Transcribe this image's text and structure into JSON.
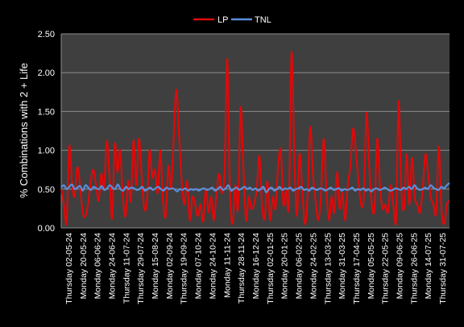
{
  "chart_data": {
    "type": "line",
    "ylabel": "% Combinations with 2 + Life",
    "xlabel": "",
    "ylim": [
      0,
      2.5
    ],
    "y_ticks": [
      "0.00",
      "0.50",
      "1.00",
      "1.50",
      "2.00",
      "2.50"
    ],
    "grid": true,
    "legend_position": "top",
    "x_tick_labels": [
      "Thursday  02-05-24",
      "Monday 20-05-24",
      "Monday 06-06-24",
      "Monday 24-06-24",
      "Thursday 11-07-24",
      "Thursday 29-07-24",
      "Monday 15-08-24",
      "Monday 02-09-24",
      "Thursday 19-09-24",
      "Monday 07-10-24",
      "Monday 24-10-24",
      "Monday 11-11-24",
      "Thursday 28-11-24",
      "Monday 16-12-24",
      "Thursday 02-01-25",
      "Monday 20-01-25",
      "Monday 06-02-25",
      "Monday 24-02-25",
      "Thursday 13-03-25",
      "Monday 31-03-25",
      "Thursday 17-04-25",
      "Monday 05-05-25",
      "Thursday 22-05-25",
      "Monday 09-06-25",
      "Thursday 26-06-25",
      "Monday 14-07-25",
      "Thursday 31-07-25"
    ],
    "series": [
      {
        "name": "LP",
        "color": "#dd0a0a",
        "values": [
          0.5,
          0.3,
          0.05,
          1.05,
          0.6,
          0.4,
          0.78,
          0.55,
          0.2,
          0.15,
          0.3,
          0.6,
          0.75,
          0.55,
          0.35,
          0.7,
          0.5,
          1.12,
          0.7,
          0.12,
          1.08,
          0.72,
          1.0,
          0.4,
          0.15,
          0.6,
          0.35,
          1.13,
          0.55,
          1.15,
          0.7,
          0.25,
          0.35,
          1.0,
          0.65,
          0.75,
          0.45,
          1.0,
          0.35,
          0.15,
          0.8,
          0.5,
          1.15,
          1.78,
          1.2,
          0.6,
          0.3,
          0.6,
          0.1,
          0.4,
          0.3,
          0.15,
          0.3,
          0.08,
          0.5,
          0.2,
          0.4,
          0.1,
          0.45,
          0.7,
          0.45,
          0.72,
          2.18,
          0.5,
          0.05,
          0.55,
          0.25,
          1.55,
          0.8,
          0.1,
          0.4,
          0.25,
          0.3,
          0.5,
          0.93,
          0.3,
          0.12,
          0.6,
          0.1,
          0.4,
          0.25,
          0.8,
          1.0,
          0.3,
          0.5,
          0.3,
          2.26,
          1.0,
          0.15,
          0.95,
          0.5,
          0.05,
          0.4,
          1.3,
          0.7,
          0.35,
          0.1,
          0.4,
          1.15,
          0.5,
          0.1,
          0.4,
          0.2,
          0.72,
          0.25,
          0.45,
          0.1,
          0.55,
          0.8,
          1.28,
          1.0,
          0.6,
          0.3,
          0.4,
          1.48,
          0.8,
          0.3,
          0.25,
          1.15,
          0.55,
          0.25,
          0.3,
          0.2,
          0.55,
          0.3,
          0.05,
          1.63,
          0.5,
          0.25,
          0.95,
          0.3,
          0.9,
          0.4,
          0.3,
          0.2,
          0.5,
          0.95,
          0.7,
          0.4,
          0.3,
          0.2,
          1.05,
          0.25,
          0.05,
          0.3,
          0.35
        ]
      },
      {
        "name": "TNL",
        "color": "#5b8edb",
        "values": [
          0.52,
          0.55,
          0.5,
          0.53,
          0.56,
          0.5,
          0.52,
          0.54,
          0.48,
          0.55,
          0.52,
          0.49,
          0.53,
          0.51,
          0.5,
          0.54,
          0.49,
          0.51,
          0.55,
          0.52,
          0.5,
          0.56,
          0.5,
          0.48,
          0.53,
          0.5,
          0.52,
          0.51,
          0.49,
          0.5,
          0.53,
          0.48,
          0.5,
          0.52,
          0.49,
          0.51,
          0.53,
          0.5,
          0.48,
          0.52,
          0.5,
          0.51,
          0.5,
          0.47,
          0.5,
          0.49,
          0.51,
          0.48,
          0.5,
          0.49,
          0.5,
          0.48,
          0.5,
          0.51,
          0.49,
          0.5,
          0.52,
          0.48,
          0.5,
          0.53,
          0.49,
          0.51,
          0.55,
          0.48,
          0.5,
          0.52,
          0.49,
          0.51,
          0.53,
          0.5,
          0.52,
          0.49,
          0.51,
          0.48,
          0.5,
          0.53,
          0.46,
          0.5,
          0.52,
          0.48,
          0.5,
          0.53,
          0.49,
          0.51,
          0.5,
          0.52,
          0.48,
          0.5,
          0.51,
          0.53,
          0.49,
          0.5,
          0.48,
          0.52,
          0.5,
          0.49,
          0.51,
          0.5,
          0.48,
          0.5,
          0.52,
          0.49,
          0.5,
          0.51,
          0.48,
          0.5,
          0.49,
          0.5,
          0.52,
          0.48,
          0.5,
          0.49,
          0.51,
          0.48,
          0.5,
          0.47,
          0.5,
          0.51,
          0.49,
          0.5,
          0.52,
          0.5,
          0.48,
          0.49,
          0.51,
          0.5,
          0.49,
          0.52,
          0.5,
          0.53,
          0.5,
          0.55,
          0.51,
          0.49,
          0.5,
          0.52,
          0.5,
          0.55,
          0.52,
          0.5,
          0.49,
          0.53,
          0.51,
          0.55,
          0.58
        ]
      }
    ]
  }
}
